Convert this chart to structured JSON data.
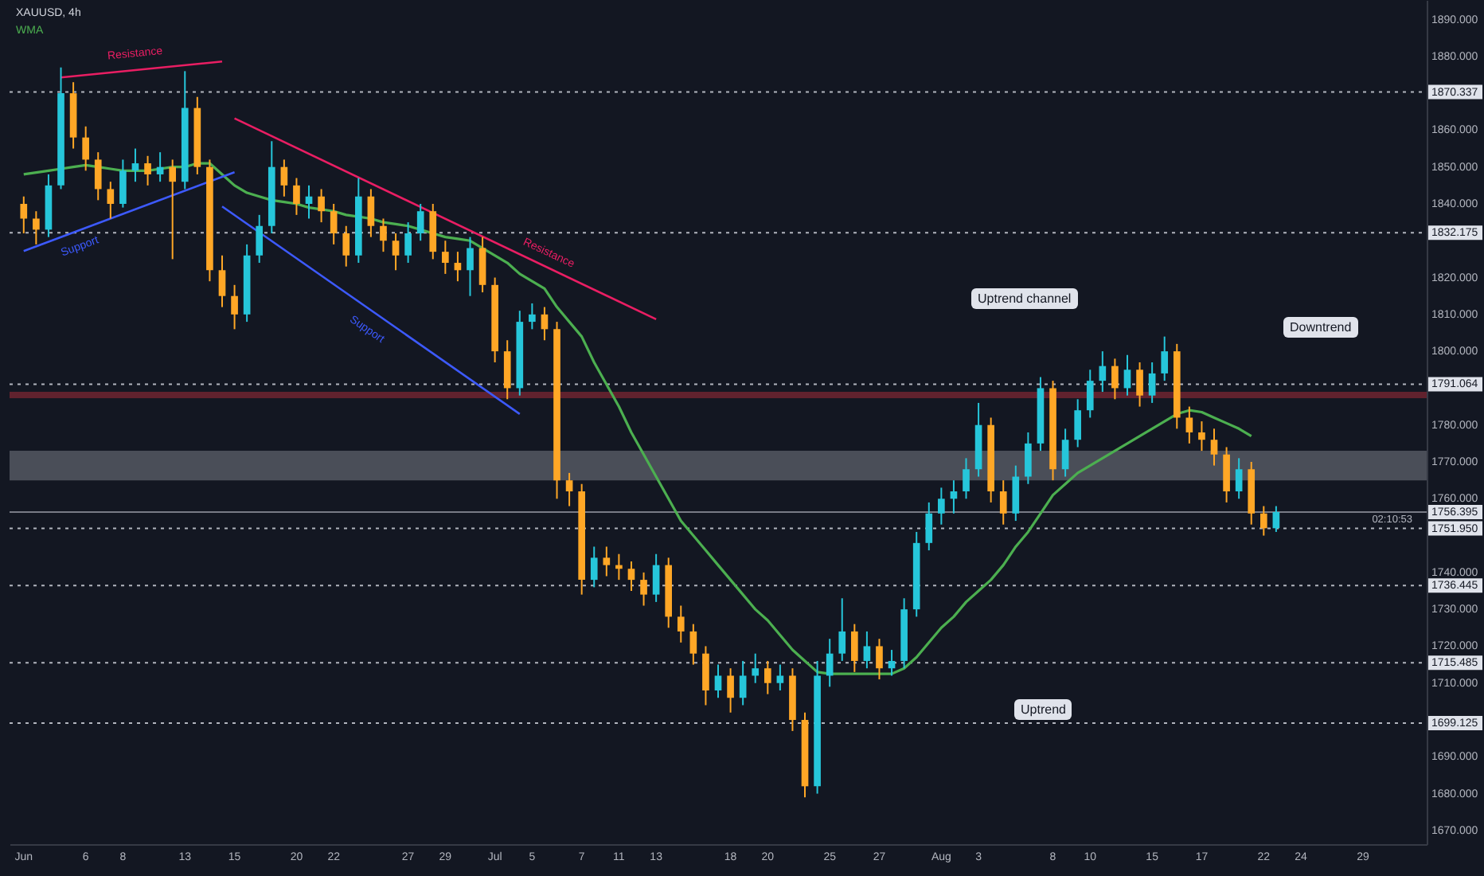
{
  "chart_data": {
    "type": "candlestick",
    "title": "XAUUSD, 4h",
    "categories": [
      "Jun",
      null,
      null,
      null,
      null,
      "6",
      null,
      null,
      "8",
      null,
      null,
      null,
      null,
      "13",
      null,
      null,
      null,
      "15",
      null,
      null,
      null,
      null,
      "20",
      null,
      null,
      "22",
      null,
      null,
      null,
      null,
      null,
      "27",
      null,
      null,
      "29",
      null,
      null,
      null,
      "Jul",
      null,
      null,
      "5",
      null,
      null,
      null,
      "7",
      null,
      null,
      "11",
      null,
      null,
      "13",
      null,
      null,
      null,
      null,
      null,
      "18",
      null,
      null,
      "20",
      null,
      null,
      null,
      null,
      "25",
      null,
      null,
      null,
      "27",
      null,
      null,
      null,
      null,
      "Aug",
      null,
      null,
      "3",
      null,
      null,
      null,
      null,
      null,
      "8",
      null,
      null,
      "10",
      null,
      null,
      null,
      null,
      "15",
      null,
      null,
      null,
      "17",
      null,
      null,
      null,
      null,
      "22",
      null,
      null,
      "24",
      null,
      null,
      null,
      null,
      "29",
      null,
      null,
      null,
      null
    ],
    "ohlc": [
      [
        1840,
        1842,
        1832,
        1836
      ],
      [
        1836,
        1838,
        1829,
        1833
      ],
      [
        1833,
        1848,
        1831,
        1845
      ],
      [
        1845,
        1877,
        1844,
        1870
      ],
      [
        1870,
        1873,
        1855,
        1858
      ],
      [
        1858,
        1861,
        1849,
        1852
      ],
      [
        1852,
        1854,
        1841,
        1844
      ],
      [
        1844,
        1846,
        1836,
        1840
      ],
      [
        1840,
        1852,
        1839,
        1849
      ],
      [
        1849,
        1855,
        1846,
        1851
      ],
      [
        1851,
        1853,
        1845,
        1848
      ],
      [
        1848,
        1854,
        1846,
        1850
      ],
      [
        1850,
        1852,
        1825,
        1846
      ],
      [
        1846,
        1876,
        1844,
        1866
      ],
      [
        1866,
        1869,
        1848,
        1850
      ],
      [
        1850,
        1852,
        1819,
        1822
      ],
      [
        1822,
        1826,
        1812,
        1815
      ],
      [
        1815,
        1818,
        1806,
        1810
      ],
      [
        1810,
        1829,
        1808,
        1826
      ],
      [
        1826,
        1837,
        1824,
        1834
      ],
      [
        1834,
        1857,
        1832,
        1850
      ],
      [
        1850,
        1852,
        1842,
        1845
      ],
      [
        1845,
        1847,
        1837,
        1840
      ],
      [
        1840,
        1845,
        1836,
        1842
      ],
      [
        1842,
        1844,
        1835,
        1838
      ],
      [
        1838,
        1840,
        1829,
        1832
      ],
      [
        1832,
        1834,
        1823,
        1826
      ],
      [
        1826,
        1847,
        1824,
        1842
      ],
      [
        1842,
        1844,
        1831,
        1834
      ],
      [
        1834,
        1836,
        1827,
        1830
      ],
      [
        1830,
        1832,
        1822,
        1826
      ],
      [
        1826,
        1835,
        1824,
        1832
      ],
      [
        1832,
        1840,
        1830,
        1838
      ],
      [
        1838,
        1840,
        1825,
        1827
      ],
      [
        1827,
        1830,
        1821,
        1824
      ],
      [
        1824,
        1827,
        1819,
        1822
      ],
      [
        1822,
        1831,
        1815,
        1828
      ],
      [
        1828,
        1831,
        1816,
        1818
      ],
      [
        1818,
        1820,
        1797,
        1800
      ],
      [
        1800,
        1803,
        1787,
        1790
      ],
      [
        1790,
        1811,
        1788,
        1808
      ],
      [
        1808,
        1813,
        1806,
        1810
      ],
      [
        1810,
        1812,
        1803,
        1806
      ],
      [
        1806,
        1808,
        1760,
        1765
      ],
      [
        1765,
        1767,
        1758,
        1762
      ],
      [
        1762,
        1764,
        1734,
        1738
      ],
      [
        1738,
        1747,
        1736,
        1744
      ],
      [
        1744,
        1747,
        1739,
        1742
      ],
      [
        1742,
        1745,
        1738,
        1741
      ],
      [
        1741,
        1743,
        1735,
        1738
      ],
      [
        1738,
        1740,
        1731,
        1734
      ],
      [
        1734,
        1745,
        1732,
        1742
      ],
      [
        1742,
        1744,
        1725,
        1728
      ],
      [
        1728,
        1731,
        1721,
        1724
      ],
      [
        1724,
        1726,
        1715,
        1718
      ],
      [
        1718,
        1720,
        1704,
        1708
      ],
      [
        1708,
        1715,
        1706,
        1712
      ],
      [
        1712,
        1714,
        1702,
        1706
      ],
      [
        1706,
        1716,
        1704,
        1712
      ],
      [
        1712,
        1718,
        1710,
        1714
      ],
      [
        1714,
        1716,
        1707,
        1710
      ],
      [
        1710,
        1715,
        1708,
        1712
      ],
      [
        1712,
        1714,
        1697,
        1700
      ],
      [
        1700,
        1702,
        1679,
        1682
      ],
      [
        1682,
        1716,
        1680,
        1712
      ],
      [
        1712,
        1722,
        1709,
        1718
      ],
      [
        1718,
        1733,
        1716,
        1724
      ],
      [
        1724,
        1726,
        1713,
        1716
      ],
      [
        1716,
        1724,
        1714,
        1720
      ],
      [
        1720,
        1722,
        1711,
        1714
      ],
      [
        1714,
        1719,
        1712,
        1716
      ],
      [
        1716,
        1733,
        1714,
        1730
      ],
      [
        1730,
        1751,
        1728,
        1748
      ],
      [
        1748,
        1759,
        1746,
        1756
      ],
      [
        1756,
        1763,
        1753,
        1760
      ],
      [
        1760,
        1765,
        1756,
        1762
      ],
      [
        1762,
        1771,
        1760,
        1768
      ],
      [
        1768,
        1786,
        1766,
        1780
      ],
      [
        1780,
        1782,
        1759,
        1762
      ],
      [
        1762,
        1765,
        1753,
        1756
      ],
      [
        1756,
        1769,
        1754,
        1766
      ],
      [
        1766,
        1778,
        1764,
        1775
      ],
      [
        1775,
        1793,
        1773,
        1790
      ],
      [
        1790,
        1792,
        1765,
        1768
      ],
      [
        1768,
        1779,
        1766,
        1776
      ],
      [
        1776,
        1787,
        1774,
        1784
      ],
      [
        1784,
        1795,
        1782,
        1792
      ],
      [
        1792,
        1800,
        1789,
        1796
      ],
      [
        1796,
        1798,
        1787,
        1790
      ],
      [
        1790,
        1799,
        1788,
        1795
      ],
      [
        1795,
        1797,
        1785,
        1788
      ],
      [
        1788,
        1797,
        1786,
        1794
      ],
      [
        1794,
        1804,
        1792,
        1800
      ],
      [
        1800,
        1802,
        1779,
        1782
      ],
      [
        1782,
        1785,
        1775,
        1778
      ],
      [
        1778,
        1781,
        1773,
        1776
      ],
      [
        1776,
        1779,
        1769,
        1772
      ],
      [
        1772,
        1774,
        1759,
        1762
      ],
      [
        1762,
        1771,
        1760,
        1768
      ],
      [
        1768,
        1770,
        1753,
        1756
      ],
      [
        1756,
        1758,
        1750,
        1752
      ],
      [
        1752,
        1758,
        1751,
        1756.4
      ],
      null,
      null,
      null,
      null,
      null,
      null,
      null,
      null,
      null,
      null,
      null
    ],
    "series": [
      {
        "name": "WMA",
        "type": "line",
        "color": "#4caf50",
        "values": [
          1848,
          1848.5,
          1849,
          1849.5,
          1850,
          1850.5,
          1850,
          1849.5,
          1849,
          1849,
          1849,
          1849.5,
          1850,
          1850,
          1851,
          1851,
          1848,
          1845,
          1843,
          1842,
          1841,
          1840.5,
          1840,
          1839,
          1838.5,
          1838,
          1837,
          1836.5,
          1836,
          1835,
          1834.5,
          1834,
          1833,
          1832,
          1831,
          1830.5,
          1830,
          1828,
          1826,
          1824,
          1821,
          1819,
          1817,
          1812,
          1808,
          1804,
          1797,
          1791,
          1785,
          1778,
          1772,
          1766,
          1760,
          1754,
          1750,
          1746,
          1742,
          1738,
          1734,
          1730,
          1727,
          1723,
          1719,
          1716,
          1713,
          1712.5,
          1712.5,
          1712.5,
          1712.5,
          1712.5,
          1712.5,
          1714,
          1717,
          1721,
          1725,
          1728,
          1732,
          1735,
          1738,
          1742,
          1747,
          1751,
          1756,
          1761,
          1764,
          1767,
          1769,
          1771,
          1773,
          1775,
          1777,
          1779,
          1781,
          1783,
          1784,
          1783.5,
          1782,
          1780.5,
          1779,
          1777,
          null,
          null,
          null,
          null,
          null,
          null,
          null,
          null,
          null,
          null,
          null,
          null,
          null
        ]
      },
      {
        "name": "Resistance",
        "type": "line",
        "color": "#e91e63",
        "values": [
          null,
          null,
          null,
          1874.3,
          null,
          null,
          null,
          null,
          null,
          null,
          null,
          null,
          null,
          null,
          null,
          null,
          1878.6,
          null,
          null,
          null,
          null,
          null,
          null,
          null,
          null,
          null,
          null,
          null,
          null,
          null,
          null,
          null,
          null,
          null,
          null,
          null,
          null,
          null,
          null,
          null,
          null,
          null,
          null,
          null,
          null,
          null,
          null,
          null,
          null,
          null,
          null,
          null,
          null,
          null,
          null,
          null,
          null,
          null,
          null,
          null,
          null,
          null,
          null,
          null,
          null,
          null,
          null,
          null,
          null,
          null,
          null,
          null,
          null,
          null,
          null,
          null,
          null,
          null,
          null,
          null,
          null,
          null,
          null,
          null,
          null,
          null,
          null,
          null,
          null,
          null,
          null,
          null,
          null,
          null,
          null,
          null,
          null,
          null,
          null,
          null,
          null,
          null,
          null,
          null,
          null,
          null,
          null,
          null,
          null,
          null,
          null,
          null,
          null
        ]
      },
      {
        "name": "Support",
        "type": "line",
        "color": "#3d5afe",
        "values": [
          1827.2,
          null,
          null,
          null,
          null,
          null,
          null,
          null,
          null,
          null,
          null,
          null,
          null,
          null,
          null,
          null,
          null,
          1848.6,
          null,
          null,
          null,
          null,
          null,
          null,
          null,
          null,
          null,
          null,
          null,
          null,
          null,
          null,
          null,
          null,
          null,
          null,
          null,
          null,
          null,
          null,
          null,
          null,
          null,
          null,
          null,
          null,
          null,
          null,
          null,
          null,
          null,
          null,
          null,
          null,
          null,
          null,
          null,
          null,
          null,
          null,
          null,
          null,
          null,
          null,
          null,
          null,
          null,
          null,
          null,
          null,
          null,
          null,
          null,
          null,
          null,
          null,
          null,
          null,
          null,
          null,
          null,
          null,
          null,
          null,
          null,
          null,
          null,
          null,
          null,
          null,
          null,
          null,
          null,
          null,
          null,
          null,
          null,
          null,
          null,
          null,
          null,
          null,
          null,
          null,
          null,
          null,
          null,
          null,
          null,
          null,
          null,
          null,
          null
        ]
      },
      {
        "name": "Resistance",
        "type": "line",
        "color": "#e91e63",
        "values": [
          null,
          null,
          null,
          null,
          null,
          null,
          null,
          null,
          null,
          null,
          null,
          null,
          null,
          null,
          null,
          null,
          null,
          1863.2,
          null,
          null,
          null,
          null,
          null,
          null,
          null,
          null,
          null,
          null,
          null,
          null,
          null,
          null,
          null,
          null,
          null,
          null,
          null,
          null,
          null,
          null,
          null,
          null,
          null,
          null,
          null,
          null,
          null,
          null,
          null,
          null,
          null,
          1808.7,
          null,
          null,
          null,
          null,
          null,
          null,
          null,
          null,
          null,
          null,
          null,
          null,
          null,
          null,
          null,
          null,
          null,
          null,
          null,
          null,
          null,
          null,
          null,
          null,
          null,
          null,
          null,
          null,
          null,
          null,
          null,
          null,
          null,
          null,
          null,
          null,
          null,
          null,
          null,
          null,
          null,
          null,
          null,
          null,
          null,
          null,
          null,
          null,
          null,
          null,
          null,
          null,
          null,
          null,
          null,
          null,
          null,
          null,
          null,
          null,
          null
        ]
      },
      {
        "name": "Support",
        "type": "line",
        "color": "#3d5afe",
        "values": [
          null,
          null,
          null,
          null,
          null,
          null,
          null,
          null,
          null,
          null,
          null,
          null,
          null,
          null,
          null,
          null,
          1839.3,
          null,
          null,
          null,
          null,
          null,
          null,
          null,
          null,
          null,
          null,
          null,
          null,
          null,
          null,
          null,
          null,
          null,
          null,
          null,
          null,
          null,
          null,
          null,
          1783,
          null,
          null,
          null,
          null,
          null,
          null,
          null,
          null,
          null,
          null,
          null,
          null,
          null,
          null,
          null,
          null,
          null,
          null,
          null,
          null,
          null,
          null,
          null,
          null,
          null,
          null,
          null,
          null,
          null,
          null,
          null,
          null,
          null,
          null,
          null,
          null,
          null,
          null,
          null,
          null,
          null,
          null,
          null,
          null,
          null,
          null,
          null,
          null,
          null,
          null,
          null,
          null,
          null,
          null,
          null,
          null,
          null,
          null,
          null,
          null,
          null,
          null,
          null,
          null,
          null,
          null,
          null,
          null,
          null,
          null,
          null,
          null
        ]
      }
    ],
    "ylim": [
      1666.3,
      1895.3
    ],
    "yticks": [
      {
        "value": 1670,
        "label": "1670.000"
      },
      {
        "value": 1680,
        "label": "1680.000"
      },
      {
        "value": 1690,
        "label": "1690.000"
      },
      {
        "value": 1710,
        "label": "1710.000"
      },
      {
        "value": 1720,
        "label": "1720.000"
      },
      {
        "value": 1730,
        "label": "1730.000"
      },
      {
        "value": 1740,
        "label": "1740.000"
      },
      {
        "value": 1760,
        "label": "1760.000"
      },
      {
        "value": 1770,
        "label": "1770.000"
      },
      {
        "value": 1780,
        "label": "1780.000"
      },
      {
        "value": 1800,
        "label": "1800.000"
      },
      {
        "value": 1810,
        "label": "1810.000"
      },
      {
        "value": 1820,
        "label": "1820.000"
      },
      {
        "value": 1840,
        "label": "1840.000"
      },
      {
        "value": 1850,
        "label": "1850.000"
      },
      {
        "value": 1860,
        "label": "1860.000"
      },
      {
        "value": 1880,
        "label": "1880.000"
      },
      {
        "value": 1890,
        "label": "1890.000"
      }
    ],
    "ref_lines": [
      {
        "axis": "y",
        "value": 1870.337,
        "label": "1870.337",
        "line_style": "dotted",
        "color": "#b2b5be"
      },
      {
        "axis": "y",
        "value": 1832.175,
        "label": "1832.175",
        "line_style": "dotted",
        "color": "#b2b5be"
      },
      {
        "axis": "y",
        "value": 1791.064,
        "label": "1791.064",
        "line_style": "dotted",
        "color": "#b2b5be"
      },
      {
        "axis": "y",
        "value": 1756.395,
        "label": "1756.395",
        "line_style": "solid",
        "color": "#787b86"
      },
      {
        "axis": "y",
        "value": 1751.95,
        "label": "1751.950",
        "line_style": "dotted",
        "color": "#b2b5be"
      },
      {
        "axis": "y",
        "value": 1736.445,
        "label": "1736.445",
        "line_style": "dotted",
        "color": "#b2b5be"
      },
      {
        "axis": "y",
        "value": 1715.485,
        "label": "1715.485",
        "line_style": "dotted",
        "color": "#b2b5be"
      },
      {
        "axis": "y",
        "value": 1699.125,
        "label": "1699.125",
        "line_style": "dotted",
        "color": "#b2b5be"
      }
    ],
    "bands": [
      {
        "axis": "y",
        "from": 1765,
        "to": 1773,
        "color": "#b2b5be"
      },
      {
        "axis": "y",
        "from": 1787.3,
        "to": 1789,
        "color": "#f23645"
      }
    ],
    "annotations": [
      "Uptrend channel",
      "Downtrend",
      "Uptrend",
      "02:10:53"
    ]
  }
}
